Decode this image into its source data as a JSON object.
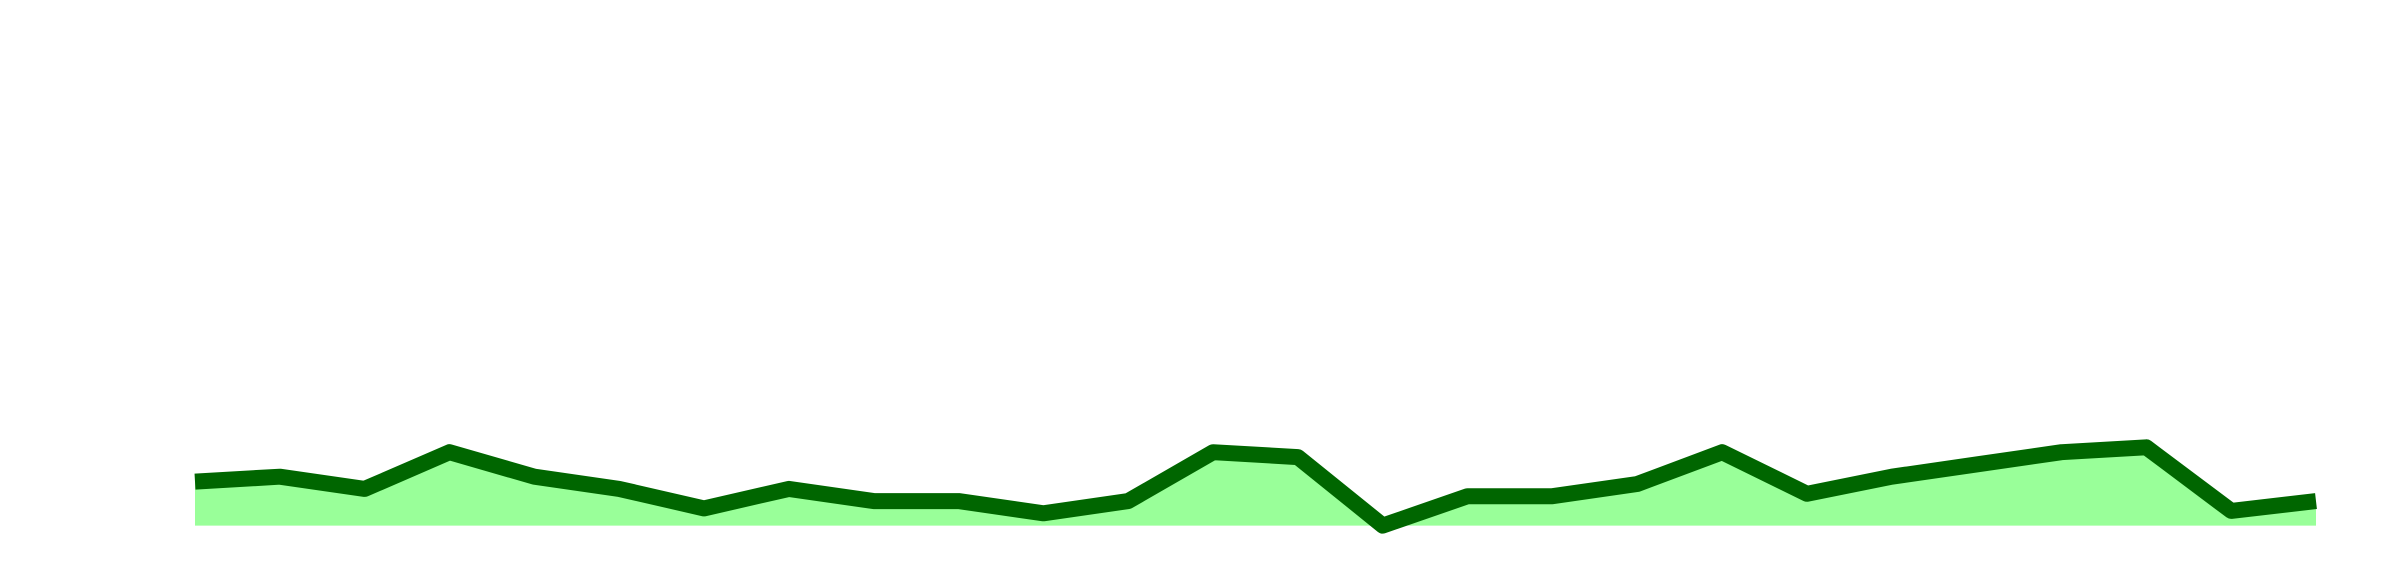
{
  "chart_data": {
    "type": "area",
    "title": "",
    "xlabel": "",
    "ylabel": "",
    "grid": false,
    "legend": "none",
    "x": [
      0,
      1,
      2,
      3,
      4,
      5,
      6,
      7,
      8,
      9,
      10,
      11,
      12,
      13,
      14,
      15,
      16,
      17,
      18,
      19,
      20,
      21,
      22,
      23,
      24,
      25
    ],
    "series": [
      {
        "values": [
          2.8,
          3.0,
          2.5,
          4.0,
          3.0,
          2.5,
          1.7,
          2.5,
          2.0,
          2.0,
          1.5,
          2.0,
          4.0,
          3.8,
          1.0,
          2.2,
          2.2,
          2.7,
          4.0,
          2.3,
          3.0,
          3.5,
          4.0,
          4.2,
          1.6,
          2.0
        ],
        "line_color": "#006600",
        "fill_color": "#99ff99"
      }
    ],
    "ylim": [
      0,
      22.5
    ],
    "baseline": 1.0
  }
}
